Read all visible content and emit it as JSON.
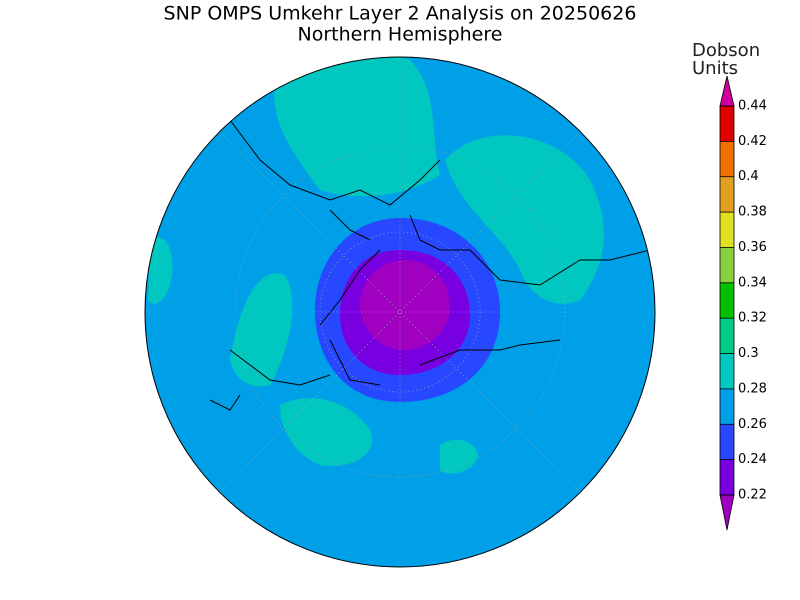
{
  "header": {
    "title": "SNP OMPS Umkehr Layer 2 Analysis on 20250626",
    "subtitle": "Northern Hemisphere"
  },
  "colorbar": {
    "label_lines": [
      "Dobson",
      "Units"
    ],
    "ticks": [
      0.22,
      0.24,
      0.26,
      0.28,
      0.3,
      0.32,
      0.34,
      0.36,
      0.38,
      0.4,
      0.42,
      0.44
    ],
    "colors": [
      "#7800e0",
      "#2848ff",
      "#00a0e8",
      "#00c8c0",
      "#00cc88",
      "#00c000",
      "#88d040",
      "#e0e020",
      "#e0a020",
      "#f07000",
      "#e00000"
    ],
    "under_color": "#a000c0",
    "over_color": "#d000a0"
  }
}
